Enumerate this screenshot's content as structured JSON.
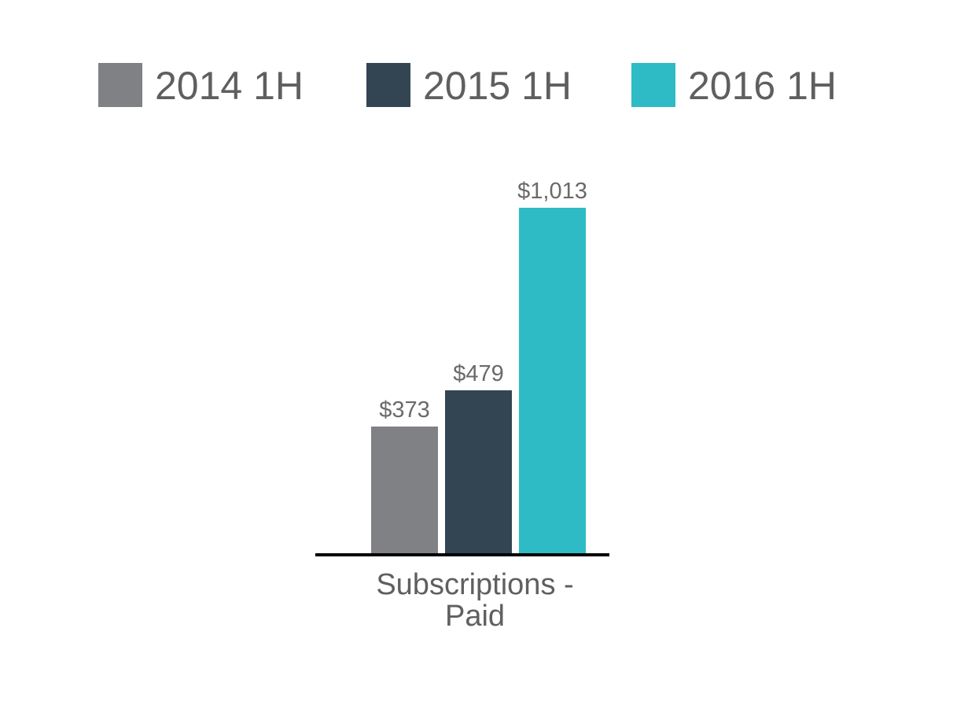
{
  "chart_data": {
    "type": "bar",
    "categories": [
      "Subscriptions - Paid"
    ],
    "category_label_lines": [
      "Subscriptions -",
      "Paid"
    ],
    "series": [
      {
        "name": "2014 1H",
        "values": [
          373
        ],
        "value_labels": [
          "$373"
        ],
        "color": "#808184"
      },
      {
        "name": "2015 1H",
        "values": [
          479
        ],
        "value_labels": [
          "$479"
        ],
        "color": "#334553"
      },
      {
        "name": "2016 1H",
        "values": [
          1013
        ],
        "value_labels": [
          "$1,013"
        ],
        "color": "#2fbbc5"
      }
    ],
    "title": "",
    "xlabel": "",
    "ylabel": "",
    "ylim": [
      0,
      1013
    ],
    "grid": false,
    "legend_position": "top",
    "axis_color": "#000000"
  }
}
